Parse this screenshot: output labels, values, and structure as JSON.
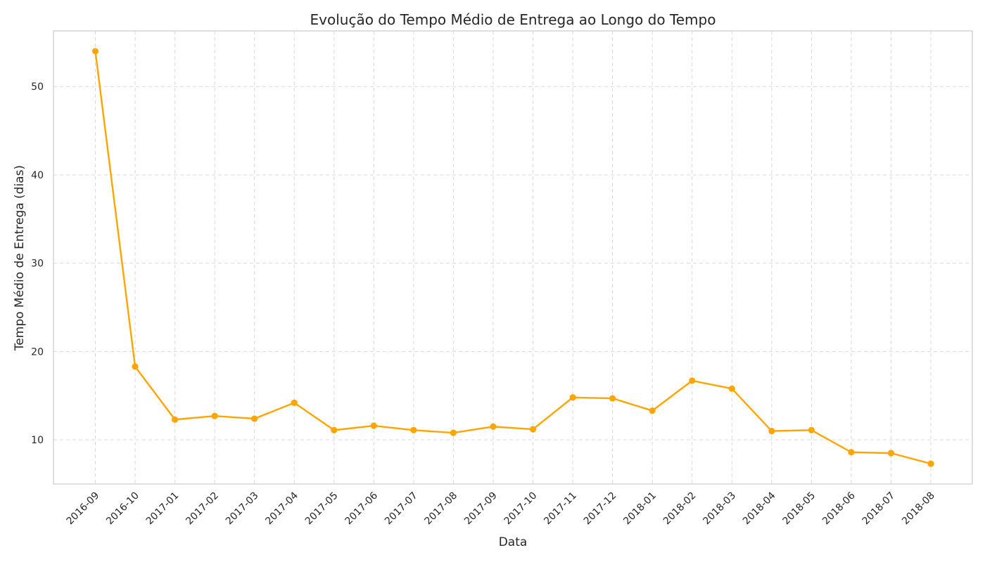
{
  "colors": {
    "series": "#FFA500",
    "background": "#ffffff",
    "grid": "#d9d9d9",
    "frame": "#cccccc",
    "text": "#262626"
  },
  "chart_data": {
    "type": "line",
    "title": "Evolução do Tempo Médio de Entrega ao Longo do Tempo",
    "xlabel": "Data",
    "ylabel": "Tempo Médio de Entrega (dias)",
    "grid": true,
    "ylim": [
      5,
      56.3
    ],
    "yticks": [
      10,
      20,
      30,
      40,
      50
    ],
    "categories": [
      "2016-09",
      "2016-10",
      "2017-01",
      "2017-02",
      "2017-03",
      "2017-04",
      "2017-05",
      "2017-06",
      "2017-07",
      "2017-08",
      "2017-09",
      "2017-10",
      "2017-11",
      "2017-12",
      "2018-01",
      "2018-02",
      "2018-03",
      "2018-04",
      "2018-05",
      "2018-06",
      "2018-07",
      "2018-08"
    ],
    "series": [
      {
        "marker": "circle",
        "values": [
          54.0,
          18.3,
          12.3,
          12.7,
          12.4,
          14.2,
          11.1,
          11.6,
          11.1,
          10.8,
          11.5,
          11.2,
          14.8,
          14.7,
          13.3,
          16.7,
          15.8,
          11.0,
          11.1,
          8.6,
          8.5,
          7.3
        ]
      }
    ]
  }
}
